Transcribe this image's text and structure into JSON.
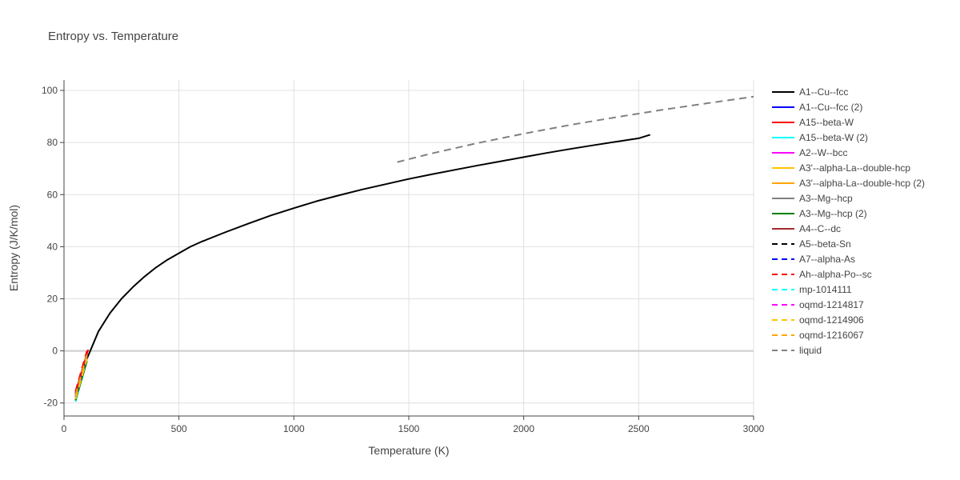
{
  "chart_data": {
    "type": "line",
    "title": "Entropy vs. Temperature",
    "xlabel": "Temperature (K)",
    "ylabel": "Entropy (J/K/mol)",
    "xlim": [
      0,
      3000
    ],
    "ylim": [
      -25,
      104
    ],
    "xticks": [
      0,
      500,
      1000,
      1500,
      2000,
      2500,
      3000
    ],
    "yticks": [
      -20,
      0,
      20,
      40,
      60,
      80,
      100
    ],
    "grid": true,
    "legend_position": "right",
    "series": [
      {
        "name": "A1--Cu--fcc",
        "color": "#000000",
        "dash": "solid",
        "x": [
          50,
          100,
          150,
          200,
          250,
          300,
          350,
          400,
          450,
          500,
          550,
          600,
          700,
          800,
          900,
          1000,
          1100,
          1200,
          1300,
          1400,
          1500,
          1600,
          1700,
          1800,
          1900,
          2000,
          2100,
          2200,
          2300,
          2400,
          2500,
          2550
        ],
        "y": [
          -19,
          -3,
          7.5,
          14.5,
          20,
          24.5,
          28.5,
          32,
          35,
          37.5,
          40,
          42,
          45.5,
          48.8,
          52,
          54.8,
          57.5,
          59.8,
          62,
          64,
          66,
          67.8,
          69.5,
          71.2,
          72.8,
          74.4,
          76,
          77.5,
          78.9,
          80.3,
          81.6,
          83
        ]
      },
      {
        "name": "A1--Cu--fcc (2)",
        "color": "#0000ff",
        "dash": "solid",
        "x": [
          50,
          100
        ],
        "y": [
          -18,
          -2
        ]
      },
      {
        "name": "A15--beta-W",
        "color": "#ff0000",
        "dash": "solid",
        "x": [
          50,
          105
        ],
        "y": [
          -16,
          0.5
        ]
      },
      {
        "name": "A15--beta-W (2)",
        "color": "#00ffff",
        "dash": "solid",
        "x": [
          50,
          100
        ],
        "y": [
          -19.5,
          -3.5
        ]
      },
      {
        "name": "A2--W--bcc",
        "color": "#ff00ff",
        "dash": "solid",
        "x": [
          50,
          100
        ],
        "y": [
          -18.5,
          -2.5
        ]
      },
      {
        "name": "A3'--alpha-La--double-hcp",
        "color": "#ffc400",
        "dash": "solid",
        "x": [
          50,
          100
        ],
        "y": [
          -17,
          -1
        ]
      },
      {
        "name": "A3'--alpha-La--double-hcp (2)",
        "color": "#ffa500",
        "dash": "solid",
        "x": [
          50,
          100
        ],
        "y": [
          -17.5,
          -1.5
        ]
      },
      {
        "name": "A3--Mg--hcp",
        "color": "#808080",
        "dash": "solid",
        "x": [
          50,
          100
        ],
        "y": [
          -18,
          -3
        ]
      },
      {
        "name": "A3--Mg--hcp (2)",
        "color": "#008000",
        "dash": "solid",
        "x": [
          50,
          100
        ],
        "y": [
          -19,
          -4
        ]
      },
      {
        "name": "A4--C--dc",
        "color": "#a52a2a",
        "dash": "solid",
        "x": [
          50,
          100
        ],
        "y": [
          -16.5,
          -1
        ]
      },
      {
        "name": "A5--beta-Sn",
        "color": "#000000",
        "dash": "dash",
        "x": [
          50,
          100
        ],
        "y": [
          -17,
          -2
        ]
      },
      {
        "name": "A7--alpha-As",
        "color": "#0000ff",
        "dash": "dash",
        "x": [
          50,
          100
        ],
        "y": [
          -16.5,
          -1.5
        ]
      },
      {
        "name": "Ah--alpha-Po--sc",
        "color": "#ff0000",
        "dash": "dash",
        "x": [
          50,
          100
        ],
        "y": [
          -15.5,
          0
        ]
      },
      {
        "name": "mp-1014111",
        "color": "#00ffff",
        "dash": "dash",
        "x": [
          50,
          100
        ],
        "y": [
          -18,
          -3
        ]
      },
      {
        "name": "oqmd-1214817",
        "color": "#ff00ff",
        "dash": "dash",
        "x": [
          50,
          100
        ],
        "y": [
          -17.5,
          -2
        ]
      },
      {
        "name": "oqmd-1214906",
        "color": "#ffc400",
        "dash": "dash",
        "x": [
          50,
          100
        ],
        "y": [
          -18.5,
          -3
        ]
      },
      {
        "name": "oqmd-1216067",
        "color": "#ffa500",
        "dash": "dash",
        "x": [
          50,
          100
        ],
        "y": [
          -17,
          -1.5
        ]
      },
      {
        "name": "liquid",
        "color": "#808080",
        "dash": "dash",
        "x": [
          1450,
          1600,
          1800,
          2000,
          2200,
          2400,
          2600,
          2800,
          3000
        ],
        "y": [
          72.5,
          75.8,
          79.8,
          83.4,
          86.7,
          89.7,
          92.5,
          95.1,
          97.6
        ]
      }
    ]
  }
}
